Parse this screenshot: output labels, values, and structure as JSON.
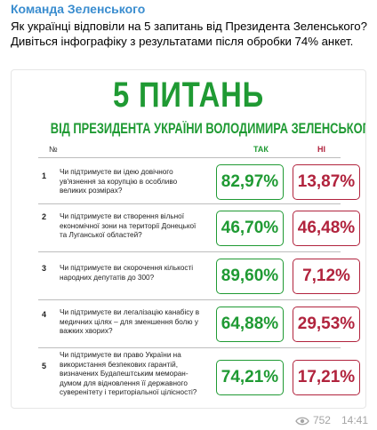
{
  "post": {
    "channel": "Команда Зеленського",
    "text_line1": "Як українці відповіли на 5 запитань від Президента Зеленського?",
    "text_line2": "Дивіться інфографіку з результатами після обробки 74% анкет.",
    "views": "752",
    "time": "14:41"
  },
  "infographic": {
    "headline": "5 ПИТАНЬ",
    "subheadline": "ВІД ПРЕЗИДЕНТА УКРАЇНИ ВОЛОДИМИРА ЗЕЛЕНСЬКОГО",
    "col_number": "№",
    "col_yes": "ТАК",
    "col_no": "НІ",
    "rows": [
      {
        "num": "1",
        "q1": "Чи підтримуєте ви ідею довічного",
        "q2": "ув'язнення за корупцію в особливо",
        "q3": "великих розмірах?",
        "q4": "",
        "yes": "82,97%",
        "no": "13,87%"
      },
      {
        "num": "2",
        "q1": "Чи підтримуєте ви створення вільної",
        "q2": "економічної зони на території Донецької",
        "q3": "та Луганської областей?",
        "q4": "",
        "yes": "46,70%",
        "no": "46,48%"
      },
      {
        "num": "3",
        "q1": "Чи підтримуєте ви скорочення кількості",
        "q2": "народних депутатів до 300?",
        "q3": "",
        "q4": "",
        "yes": "89,60%",
        "no": "7,12%"
      },
      {
        "num": "4",
        "q1": "Чи підтримуєте ви легалізацію канабісу в",
        "q2": "медичних цілях – для зменшення болю у",
        "q3": "важких хворих?",
        "q4": "",
        "yes": "64,88%",
        "no": "29,53%"
      },
      {
        "num": "5",
        "q1": "Чи підтримуєте ви право України на",
        "q2": "використання безпекових гарантій,",
        "q3": "визначених Будапештським меморан-",
        "q4": "думом для відновлення її державного",
        "q5": "суверенітету і територіальної цілісності?",
        "yes": "74,21%",
        "no": "17,21%"
      }
    ]
  }
}
